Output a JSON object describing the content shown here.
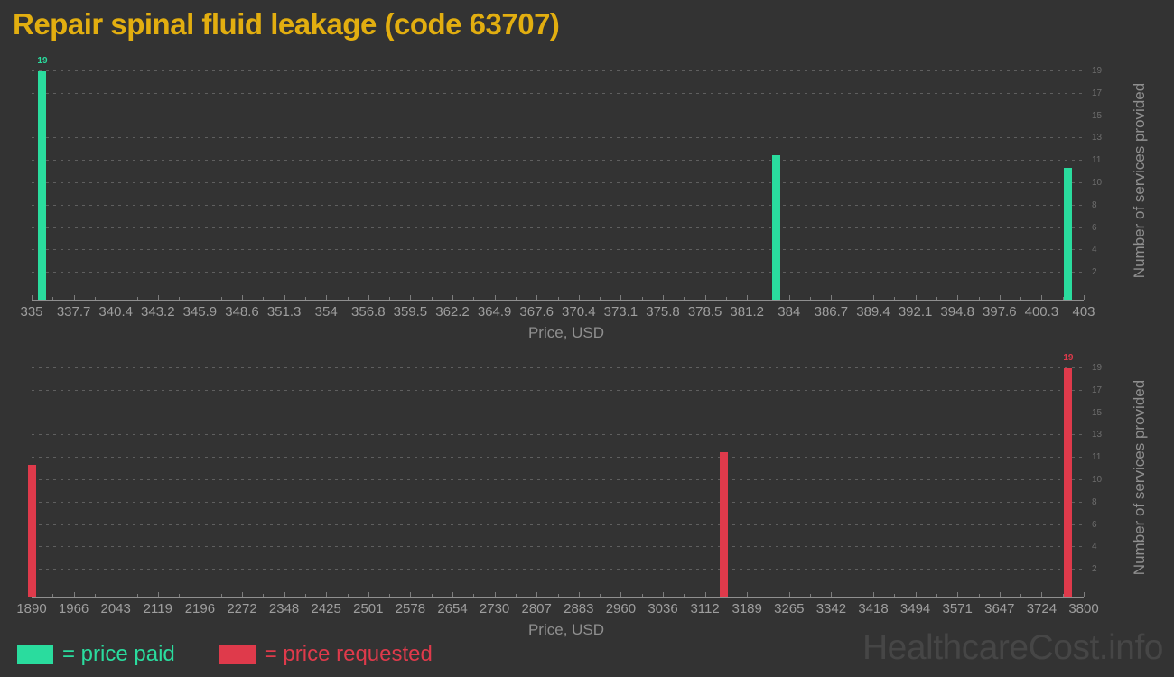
{
  "page": {
    "title": "Repair spinal fluid leakage (code 63707)",
    "watermark": "HealthcareCost.info",
    "background": "#333333",
    "title_color": "#e2ae10"
  },
  "legend": [
    {
      "label": "= price paid",
      "color": "#2adc9e"
    },
    {
      "label": "= price requested",
      "color": "#df3a4b"
    }
  ],
  "chart_data": [
    {
      "type": "bar",
      "name": "price paid",
      "color": "#2adc9e",
      "xlabel": "Price, USD",
      "ylabel": "Number of services provided",
      "x_min": 335,
      "x_max": 403,
      "ylim": [
        0,
        19
      ],
      "grid": "dashed-horizontal",
      "y_ticks": [
        "19",
        "17",
        "15",
        "13",
        "11",
        "10",
        "8",
        "6",
        "4",
        "2"
      ],
      "x_ticks": [
        "335",
        "337.7",
        "340.4",
        "343.2",
        "345.9",
        "348.6",
        "351.3",
        "354",
        "356.8",
        "359.5",
        "362.2",
        "364.9",
        "367.6",
        "370.4",
        "373.1",
        "375.8",
        "378.5",
        "381.2",
        "384",
        "386.7",
        "389.4",
        "392.1",
        "394.8",
        "397.6",
        "400.3",
        "403"
      ],
      "bars": [
        {
          "price": 335.7,
          "count": 19,
          "label": "19"
        },
        {
          "price": 383.1,
          "count": 12
        },
        {
          "price": 402.0,
          "count": 11
        }
      ]
    },
    {
      "type": "bar",
      "name": "price requested",
      "color": "#df3a4b",
      "xlabel": "Price, USD",
      "ylabel": "Number of services provided",
      "x_min": 1890,
      "x_max": 3800,
      "ylim": [
        0,
        19
      ],
      "grid": "dashed-horizontal",
      "y_ticks": [
        "19",
        "17",
        "15",
        "13",
        "11",
        "10",
        "8",
        "6",
        "4",
        "2"
      ],
      "x_ticks": [
        "1890",
        "1966",
        "2043",
        "2119",
        "2196",
        "2272",
        "2348",
        "2425",
        "2501",
        "2578",
        "2654",
        "2730",
        "2807",
        "2883",
        "2960",
        "3036",
        "3112",
        "3189",
        "3265",
        "3342",
        "3418",
        "3494",
        "3571",
        "3647",
        "3724",
        "3800"
      ],
      "bars": [
        {
          "price": 1890,
          "count": 11
        },
        {
          "price": 3146,
          "count": 12
        },
        {
          "price": 3772,
          "count": 19,
          "label": "19"
        }
      ]
    }
  ]
}
